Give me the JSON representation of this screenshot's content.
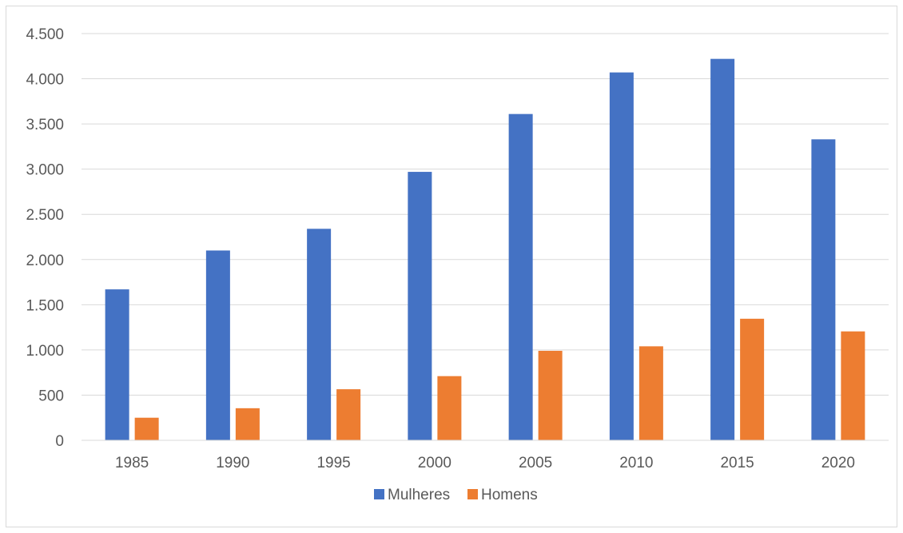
{
  "chart_data": {
    "type": "bar",
    "title": "",
    "xlabel": "",
    "ylabel": "",
    "categories": [
      "1985",
      "1990",
      "1995",
      "2000",
      "2005",
      "2010",
      "2015",
      "2020"
    ],
    "series": [
      {
        "name": "Mulheres",
        "color": "#4472C4",
        "values": [
          1670,
          2100,
          2340,
          2970,
          3610,
          4070,
          4220,
          3330
        ]
      },
      {
        "name": "Homens",
        "color": "#ED7D31",
        "values": [
          250,
          355,
          565,
          710,
          990,
          1040,
          1345,
          1205
        ]
      }
    ],
    "ylim": [
      0,
      4500
    ],
    "yticks": [
      0,
      500,
      1000,
      1500,
      2000,
      2500,
      3000,
      3500,
      4000,
      4500
    ],
    "ytick_labels": [
      "0",
      "500",
      "1.000",
      "1.500",
      "2.000",
      "2.500",
      "3.000",
      "3.500",
      "4.000",
      "4.500"
    ],
    "grid": true,
    "legend_position": "bottom"
  }
}
